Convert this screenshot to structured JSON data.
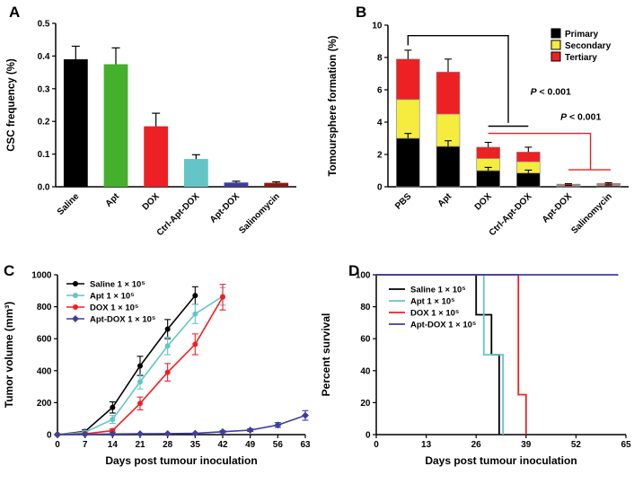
{
  "figure_background": "#ffffff",
  "chart_data": [
    {
      "panel": "A",
      "type": "bar",
      "ylabel": "CSC frequency (%)",
      "ylim": [
        0,
        0.5
      ],
      "yticks": [
        0,
        0.1,
        0.2,
        0.3,
        0.4,
        0.5
      ],
      "ytick_decimals": 1,
      "categories": [
        "Saline",
        "Apt",
        "DOX",
        "Ctrl-Apt-DOX",
        "Apt-DOX",
        "Salinomycin"
      ],
      "values": [
        0.39,
        0.375,
        0.185,
        0.085,
        0.013,
        0.012
      ],
      "errors": [
        0.04,
        0.05,
        0.04,
        0.013,
        0.004,
        0.003
      ],
      "colors": [
        "#000000",
        "#44b02c",
        "#ed2024",
        "#63c5c8",
        "#3e3e9d",
        "#8c1a11"
      ],
      "grid": false
    },
    {
      "panel": "B",
      "type": "stacked_bar",
      "ylabel": "Tomoursphere formation (%)",
      "ylim": [
        0,
        10
      ],
      "yticks": [
        0,
        2,
        4,
        6,
        8,
        10
      ],
      "categories": [
        "PBS",
        "Apt",
        "DOX",
        "Ctrl-Apt-DOX",
        "Apt-DOX",
        "Salinomycin"
      ],
      "series": [
        {
          "name": "Primary",
          "color": "#000000",
          "values": [
            3.0,
            2.5,
            1.0,
            0.85,
            0.06,
            0.08
          ],
          "errors": [
            0.3,
            0.35,
            0.2,
            0.18,
            0.02,
            0.03
          ]
        },
        {
          "name": "Secondary",
          "color": "#f5ec3d",
          "values": [
            2.4,
            2.0,
            0.75,
            0.7,
            0.05,
            0.06
          ],
          "errors": [
            0.6,
            0.6,
            0.3,
            0.25,
            0.03,
            0.04
          ]
        },
        {
          "name": "Tertiary",
          "color": "#ed2024",
          "values": [
            2.5,
            2.6,
            0.7,
            0.6,
            0.05,
            0.06
          ],
          "errors": [
            0.55,
            0.8,
            0.3,
            0.3,
            0.03,
            0.05
          ]
        }
      ],
      "legend_position": "top-right",
      "annotations": [
        {
          "text": "P < 0.001",
          "text_color": "#000000",
          "line_color": "#000000",
          "text_pos": [
            3.05,
            5.7
          ],
          "lines": [
            [
              [
                0,
                8.75
              ],
              [
                0,
                9.35
              ],
              [
                2.5,
                9.35
              ],
              [
                2.5,
                3.95
              ]
            ],
            [
              [
                2.0,
                3.75
              ],
              [
                3.0,
                3.75
              ]
            ]
          ]
        },
        {
          "text": "P < 0.001",
          "text_color": "#000000",
          "line_color": "#ed2024",
          "text_pos": [
            3.8,
            4.15
          ],
          "lines": [
            [
              [
                2.0,
                3.3
              ],
              [
                4.55,
                3.3
              ],
              [
                4.55,
                1.05
              ]
            ],
            [
              [
                4.0,
                1.05
              ],
              [
                5.05,
                1.05
              ]
            ]
          ]
        }
      ]
    },
    {
      "panel": "C",
      "type": "line",
      "xlabel": "Days post tumour inoculation",
      "ylabel": "Tumor volume (mm³)",
      "xlim": [
        0,
        63
      ],
      "ylim": [
        0,
        1000
      ],
      "xticks": [
        0,
        7,
        14,
        21,
        28,
        35,
        42,
        49,
        56,
        63
      ],
      "yticks": [
        0,
        200,
        400,
        600,
        800,
        1000
      ],
      "legend_position": "top-left",
      "series": [
        {
          "name": "Saline 1 × 10⁵",
          "color": "#000000",
          "marker": "circle",
          "x": [
            0,
            7,
            14,
            21,
            28,
            35
          ],
          "y": [
            0,
            20,
            170,
            430,
            660,
            870
          ],
          "err": [
            0,
            10,
            35,
            60,
            60,
            55
          ]
        },
        {
          "name": "Apt 1 × 10⁵",
          "color": "#63c5c8",
          "marker": "circle",
          "x": [
            0,
            7,
            14,
            21,
            28,
            35,
            42
          ],
          "y": [
            0,
            15,
            95,
            330,
            555,
            755,
            865
          ],
          "err": [
            0,
            8,
            25,
            45,
            55,
            60,
            55
          ]
        },
        {
          "name": "DOX 1 × 10⁵",
          "color": "#ed2024",
          "marker": "circle",
          "x": [
            0,
            7,
            14,
            21,
            28,
            35,
            42
          ],
          "y": [
            0,
            5,
            25,
            195,
            390,
            565,
            860
          ],
          "err": [
            0,
            4,
            10,
            40,
            55,
            65,
            80
          ]
        },
        {
          "name": "Apt-DOX 1 × 10⁵",
          "color": "#3e3e9d",
          "marker": "diamond",
          "x": [
            0,
            7,
            14,
            21,
            28,
            35,
            42,
            49,
            56,
            63
          ],
          "y": [
            0,
            2,
            4,
            5,
            6,
            8,
            18,
            28,
            60,
            120
          ],
          "err": [
            0,
            0,
            0,
            0,
            0,
            0,
            6,
            8,
            15,
            30
          ]
        }
      ]
    },
    {
      "panel": "D",
      "type": "step_line",
      "xlabel": "Days post tumour inoculation",
      "ylabel": "Percent survival",
      "xlim": [
        0,
        65
      ],
      "ylim": [
        0,
        100
      ],
      "xticks": [
        0,
        13,
        26,
        39,
        52,
        65
      ],
      "yticks": [
        0,
        20,
        40,
        60,
        80,
        100
      ],
      "legend_position": "top-left",
      "series": [
        {
          "name": "Saline 1 × 10⁵",
          "color": "#000000",
          "points": [
            [
              0,
              100
            ],
            [
              26,
              100
            ],
            [
              26,
              75
            ],
            [
              30,
              75
            ],
            [
              30,
              50
            ],
            [
              32,
              50
            ],
            [
              32,
              0
            ]
          ]
        },
        {
          "name": "Apt 1 × 10⁵",
          "color": "#63c5c8",
          "points": [
            [
              0,
              100
            ],
            [
              28,
              100
            ],
            [
              28,
              50
            ],
            [
              33,
              50
            ],
            [
              33,
              0
            ]
          ]
        },
        {
          "name": "DOX 1 × 10⁵",
          "color": "#ed2024",
          "points": [
            [
              0,
              100
            ],
            [
              37,
              100
            ],
            [
              37,
              25
            ],
            [
              39,
              25
            ],
            [
              39,
              0
            ]
          ]
        },
        {
          "name": "Apt-DOX 1 × 10⁵",
          "color": "#3e3e9d",
          "points": [
            [
              0,
              100
            ],
            [
              63,
              100
            ]
          ]
        }
      ]
    }
  ]
}
